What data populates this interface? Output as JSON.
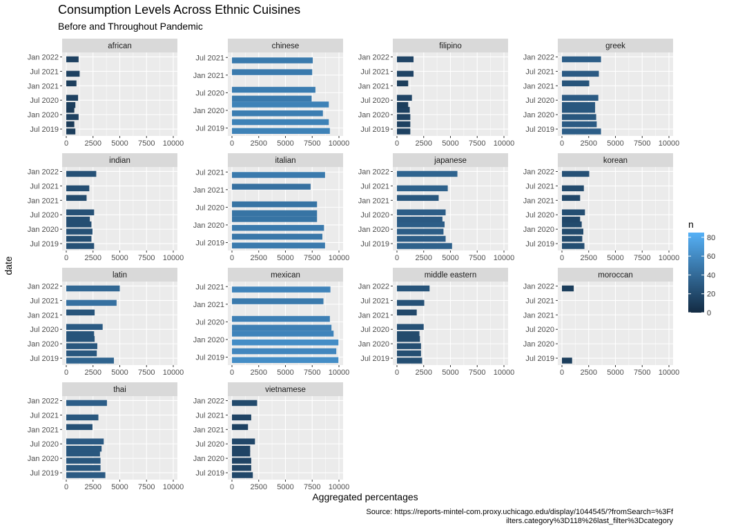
{
  "chart_data": {
    "type": "bar",
    "title": "Consumption Levels Across Ethnic Cuisines",
    "subtitle": "Before and Throughout Pandemic",
    "xlabel": "Aggregated percentages",
    "ylabel": "date",
    "caption_lines": [
      "Source: https://reports-mintel-com.proxy.uchicago.edu/display/1044545/?fromSearch=%3Ff",
      "ilters.category%3D118%26last_filter%3Dcategory"
    ],
    "x_ticks": [
      0,
      2500,
      5000,
      7500,
      10000
    ],
    "x_tick_labels": [
      "0",
      "2500",
      "5000",
      "7500",
      "10000"
    ],
    "xlim": [
      0,
      10000
    ],
    "legend": {
      "title": "n",
      "ticks": [
        0,
        20,
        40,
        60,
        80
      ],
      "tick_labels": [
        "0",
        "20",
        "40",
        "60",
        "80"
      ],
      "low_color": "#132B43",
      "high_color": "#56B1F7",
      "max": 85
    },
    "grid": true,
    "panel_bg": "#EBEBEB",
    "strip_bg": "#D9D9D9",
    "y_ticks_long": [
      "Jan 2022",
      "Jul 2021",
      "Jan 2021",
      "Jul 2020",
      "Jan 2020",
      "Jul 2019"
    ],
    "y_ticks_short": [
      "Jul 2021",
      "Jan 2021",
      "Jul 2020",
      "Jan 2020",
      "Jul 2019"
    ],
    "panels": [
      {
        "name": "african",
        "range": "long",
        "periods": [
          "Jun 2019",
          "Sep 2019",
          "Dec 2019",
          "Mar 2020",
          "May 2020",
          "Aug 2020",
          "Feb 2021",
          "Jun 2021",
          "Dec 2021"
        ],
        "values": [
          850,
          750,
          1150,
          750,
          850,
          1100,
          950,
          1250,
          1150
        ],
        "n": [
          12,
          10,
          14,
          10,
          12,
          14,
          12,
          14,
          14
        ]
      },
      {
        "name": "chinese",
        "range": "short",
        "periods": [
          "Jun 2019",
          "Sep 2019",
          "Dec 2019",
          "Mar 2020",
          "May 2020",
          "Aug 2020",
          "Feb 2021",
          "Jun 2021"
        ],
        "values": [
          9150,
          9050,
          8500,
          9050,
          7450,
          7800,
          7500,
          7550
        ],
        "n": [
          55,
          55,
          52,
          55,
          50,
          52,
          50,
          50
        ]
      },
      {
        "name": "filipino",
        "range": "long",
        "periods": [
          "Jun 2019",
          "Sep 2019",
          "Dec 2019",
          "Mar 2020",
          "May 2020",
          "Aug 2020",
          "Feb 2021",
          "Jun 2021",
          "Dec 2021"
        ],
        "values": [
          1250,
          1250,
          1250,
          1200,
          1050,
          1400,
          1050,
          1550,
          1550
        ],
        "n": [
          14,
          14,
          14,
          14,
          12,
          16,
          12,
          16,
          16
        ]
      },
      {
        "name": "greek",
        "range": "long",
        "periods": [
          "Jun 2019",
          "Sep 2019",
          "Dec 2019",
          "Mar 2020",
          "May 2020",
          "Aug 2020",
          "Feb 2021",
          "Jun 2021",
          "Dec 2021"
        ],
        "values": [
          3650,
          3250,
          3200,
          3100,
          3100,
          3400,
          2550,
          3450,
          3650
        ],
        "n": [
          32,
          30,
          28,
          28,
          28,
          30,
          26,
          30,
          32
        ]
      },
      {
        "name": "indian",
        "range": "long",
        "periods": [
          "Jun 2019",
          "Sep 2019",
          "Dec 2019",
          "Mar 2020",
          "May 2020",
          "Aug 2020",
          "Feb 2021",
          "Jun 2021",
          "Dec 2021"
        ],
        "values": [
          2600,
          2350,
          2450,
          2350,
          2200,
          2600,
          1900,
          2150,
          2800
        ],
        "n": [
          24,
          22,
          24,
          22,
          22,
          24,
          20,
          22,
          24
        ]
      },
      {
        "name": "italian",
        "range": "short",
        "periods": [
          "Jun 2019",
          "Sep 2019",
          "Dec 2019",
          "Mar 2020",
          "May 2020",
          "Aug 2020",
          "Feb 2021",
          "Jun 2021"
        ],
        "values": [
          8700,
          8450,
          8600,
          7950,
          7950,
          7950,
          7350,
          8700
        ],
        "n": [
          50,
          48,
          50,
          46,
          46,
          46,
          44,
          50
        ]
      },
      {
        "name": "japanese",
        "range": "long",
        "periods": [
          "Jun 2019",
          "Sep 2019",
          "Dec 2019",
          "Mar 2020",
          "May 2020",
          "Aug 2020",
          "Feb 2021",
          "Jun 2021",
          "Dec 2021"
        ],
        "values": [
          5150,
          4550,
          4350,
          4450,
          4250,
          4550,
          3900,
          4750,
          5650
        ],
        "n": [
          34,
          32,
          32,
          32,
          30,
          32,
          28,
          34,
          36
        ]
      },
      {
        "name": "korean",
        "range": "long",
        "periods": [
          "Jun 2019",
          "Sep 2019",
          "Dec 2019",
          "Mar 2020",
          "May 2020",
          "Aug 2020",
          "Feb 2021",
          "Jun 2021",
          "Dec 2021"
        ],
        "values": [
          2100,
          1900,
          2000,
          1850,
          1700,
          2150,
          1700,
          2050,
          2550
        ],
        "n": [
          22,
          20,
          20,
          20,
          18,
          22,
          18,
          20,
          24
        ]
      },
      {
        "name": "latin",
        "range": "long",
        "periods": [
          "Jun 2019",
          "Sep 2019",
          "Dec 2019",
          "Mar 2020",
          "May 2020",
          "Aug 2020",
          "Feb 2021",
          "Jun 2021",
          "Dec 2021"
        ],
        "values": [
          4450,
          2850,
          2900,
          2650,
          2600,
          3400,
          2650,
          4700,
          5000
        ],
        "n": [
          36,
          28,
          28,
          26,
          26,
          30,
          26,
          44,
          38
        ]
      },
      {
        "name": "mexican",
        "range": "short",
        "periods": [
          "Jun 2019",
          "Sep 2019",
          "Dec 2019",
          "Mar 2020",
          "May 2020",
          "Aug 2020",
          "Feb 2021",
          "Jun 2021"
        ],
        "values": [
          9950,
          9750,
          9950,
          9500,
          9300,
          9150,
          8550,
          9200
        ],
        "n": [
          62,
          58,
          62,
          56,
          54,
          54,
          50,
          56
        ]
      },
      {
        "name": "middle eastern",
        "range": "long",
        "periods": [
          "Jun 2019",
          "Sep 2019",
          "Dec 2019",
          "Mar 2020",
          "May 2020",
          "Aug 2020",
          "Feb 2021",
          "Jun 2021",
          "Dec 2021"
        ],
        "values": [
          2350,
          2250,
          2250,
          2150,
          2100,
          2500,
          1850,
          2550,
          3050
        ],
        "n": [
          22,
          22,
          22,
          20,
          20,
          24,
          18,
          24,
          26
        ]
      },
      {
        "name": "moroccan",
        "range": "long",
        "periods": [
          "Jun 2019",
          "Dec 2021"
        ],
        "values": [
          950,
          1100
        ],
        "n": [
          12,
          12
        ]
      },
      {
        "name": "thai",
        "range": "long",
        "periods": [
          "Jun 2019",
          "Sep 2019",
          "Dec 2019",
          "Mar 2020",
          "May 2020",
          "Aug 2020",
          "Feb 2021",
          "Jun 2021",
          "Dec 2021"
        ],
        "values": [
          3650,
          3200,
          3200,
          3150,
          3300,
          3500,
          2450,
          3000,
          3800
        ],
        "n": [
          30,
          28,
          28,
          28,
          28,
          30,
          24,
          28,
          32
        ]
      },
      {
        "name": "vietnamese",
        "range": "long",
        "periods": [
          "Jun 2019",
          "Sep 2019",
          "Dec 2019",
          "Mar 2020",
          "May 2020",
          "Aug 2020",
          "Feb 2021",
          "Jun 2021",
          "Dec 2021"
        ],
        "values": [
          1950,
          1800,
          1800,
          1700,
          1700,
          2150,
          1500,
          1800,
          2350
        ],
        "n": [
          18,
          16,
          16,
          16,
          16,
          18,
          14,
          16,
          20
        ]
      }
    ]
  }
}
